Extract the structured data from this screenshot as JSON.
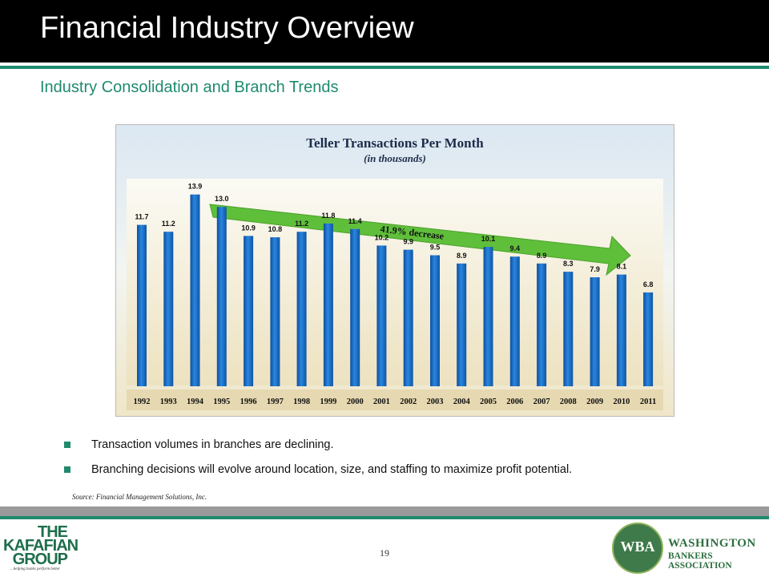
{
  "header": {
    "title": "Financial Industry Overview",
    "subtitle": "Industry Consolidation and Branch Trends"
  },
  "colors": {
    "header_bg": "#000000",
    "accent_green": "#1f8a6e",
    "bar_blue": "#1768c2",
    "arrow_green": "#5fbf3a"
  },
  "chart_data": {
    "type": "bar",
    "title": "Teller Transactions Per Month",
    "subtitle": "(in thousands)",
    "categories": [
      "1992",
      "1993",
      "1994",
      "1995",
      "1996",
      "1997",
      "1998",
      "1999",
      "2000",
      "2001",
      "2002",
      "2003",
      "2004",
      "2005",
      "2006",
      "2007",
      "2008",
      "2009",
      "2010",
      "2011"
    ],
    "values": [
      11.7,
      11.2,
      13.9,
      13.0,
      10.9,
      10.8,
      11.2,
      11.8,
      11.4,
      10.2,
      9.9,
      9.5,
      8.9,
      10.1,
      9.4,
      8.9,
      8.3,
      7.9,
      8.1,
      6.8
    ],
    "data_labels": [
      "11.7",
      "11.2",
      "13.9",
      "13.0",
      "10.9",
      "10.8",
      "11.2",
      "11.8",
      "11.4",
      "10.2",
      "9.9",
      "9.5",
      "8.9",
      "10.1",
      "9.4",
      "8.9",
      "8.3",
      "7.9",
      "8.1",
      "6.8"
    ],
    "annotation": "41.9% decrease",
    "ylim": [
      0,
      14
    ]
  },
  "bullets": [
    "Transaction volumes in branches are declining.",
    "Branching decisions will evolve around location, size, and staffing to maximize profit potential."
  ],
  "source": "Source: Financial Management Solutions, Inc.",
  "page_number": "19",
  "logos": {
    "kafafian_lines": [
      "THE",
      "KAFAFIAN",
      "GROUP"
    ],
    "kafafian_tagline": "...helping banks perform better",
    "wba_abbr": "WBA",
    "wba_name_line1": "WASHINGTON",
    "wba_name_line2": "BANKERS ASSOCIATION"
  }
}
